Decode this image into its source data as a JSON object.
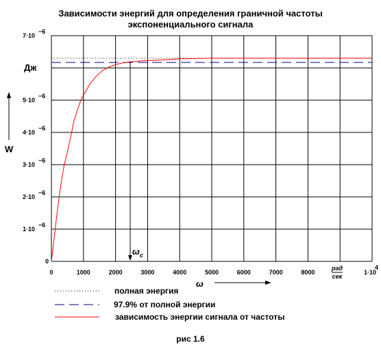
{
  "chart_data": {
    "type": "line",
    "title_lines": [
      "Зависимости энергий для определения граничной частоты",
      "экспоненциального сигнала"
    ],
    "xlabel": "ω",
    "xunit_num": "рад",
    "xunit_den": "сек",
    "ylabel": "W",
    "yunit": "Дж",
    "xlim": [
      0,
      10000
    ],
    "ylim": [
      0,
      7e-06
    ],
    "x_ticks": [
      "0",
      "1000",
      "2000",
      "3000",
      "4000",
      "5000",
      "6000",
      "7000",
      "8000"
    ],
    "x_last_tick": {
      "mantissa": "1·10",
      "exp": "4"
    },
    "y_ticks": [
      {
        "mantissa": "1·10",
        "exp": "−6"
      },
      {
        "mantissa": "2·10",
        "exp": "−6"
      },
      {
        "mantissa": "3·10",
        "exp": "−6"
      },
      {
        "mantissa": "4·10",
        "exp": "−6"
      },
      {
        "mantissa": "5·10",
        "exp": "−6"
      },
      {
        "mantissa": "7·10",
        "exp": "−6"
      }
    ],
    "y_zero": "0",
    "grid": true,
    "series": [
      {
        "name": "полная энергия",
        "style": "dotted",
        "color": "#000000",
        "x": [
          0,
          10000
        ],
        "y": [
          6.3e-06,
          6.3e-06
        ]
      },
      {
        "name": "97.9% от полной энергии",
        "style": "dashed",
        "color": "#000080",
        "x": [
          0,
          10000
        ],
        "y": [
          6.17e-06,
          6.17e-06
        ]
      },
      {
        "name": "зависимость энергии сигнала от частоты",
        "style": "solid",
        "color": "#ff0000",
        "x": [
          0,
          100,
          200,
          300,
          400,
          500,
          600,
          700,
          800,
          900,
          1000,
          1200,
          1400,
          1600,
          1800,
          2000,
          2200,
          2400,
          2600,
          2800,
          3000,
          3500,
          4000,
          5000,
          6000,
          8000,
          10000
        ],
        "y": [
          0,
          8.5e-07,
          1.7e-06,
          2.4e-06,
          3e-06,
          3.4e-06,
          3.85e-06,
          4.35e-06,
          4.65e-06,
          4.95e-06,
          5.15e-06,
          5.5e-06,
          5.75e-06,
          5.92e-06,
          6.03e-06,
          6.1e-06,
          6.15e-06,
          6.18e-06,
          6.2e-06,
          6.22e-06,
          6.23e-06,
          6.25e-06,
          6.28e-06,
          6.3e-06,
          6.3e-06,
          6.3e-06,
          6.3e-06
        ]
      }
    ],
    "annotation": {
      "label": "ω",
      "subscript": "c",
      "x": 2500
    }
  },
  "caption": "рис 1.6"
}
